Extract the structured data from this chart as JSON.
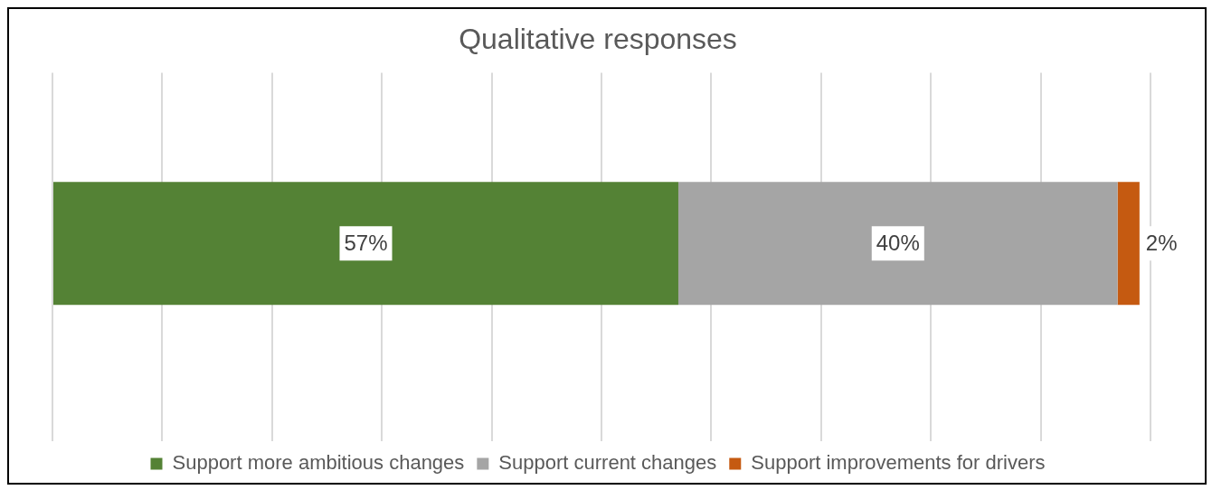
{
  "chart_data": {
    "type": "bar",
    "orientation": "horizontal",
    "stacked": true,
    "title": "Qualitative responses",
    "categories": [
      null
    ],
    "series": [
      {
        "name": "Support more ambitious changes",
        "color": "#548235",
        "values": [
          57
        ],
        "value_labels": [
          "57%"
        ]
      },
      {
        "name": "Support current changes",
        "color": "#a5a5a5",
        "values": [
          40
        ],
        "value_labels": [
          "40%"
        ]
      },
      {
        "name": "Support improvements for drivers",
        "color": "#c55a11",
        "values": [
          2
        ],
        "value_labels": [
          "2%"
        ]
      }
    ],
    "xlim": [
      0,
      100
    ],
    "xticks": [
      {
        "value": 0,
        "label": null
      },
      {
        "value": 10,
        "label": null
      },
      {
        "value": 20,
        "label": null
      },
      {
        "value": 30,
        "label": null
      },
      {
        "value": 40,
        "label": null
      },
      {
        "value": 50,
        "label": null
      },
      {
        "value": 60,
        "label": null
      },
      {
        "value": 70,
        "label": null
      },
      {
        "value": 80,
        "label": null
      },
      {
        "value": 90,
        "label": null
      },
      {
        "value": 100,
        "label": null
      }
    ],
    "tick_labels": false,
    "grid": "x",
    "legend": "bottom"
  }
}
